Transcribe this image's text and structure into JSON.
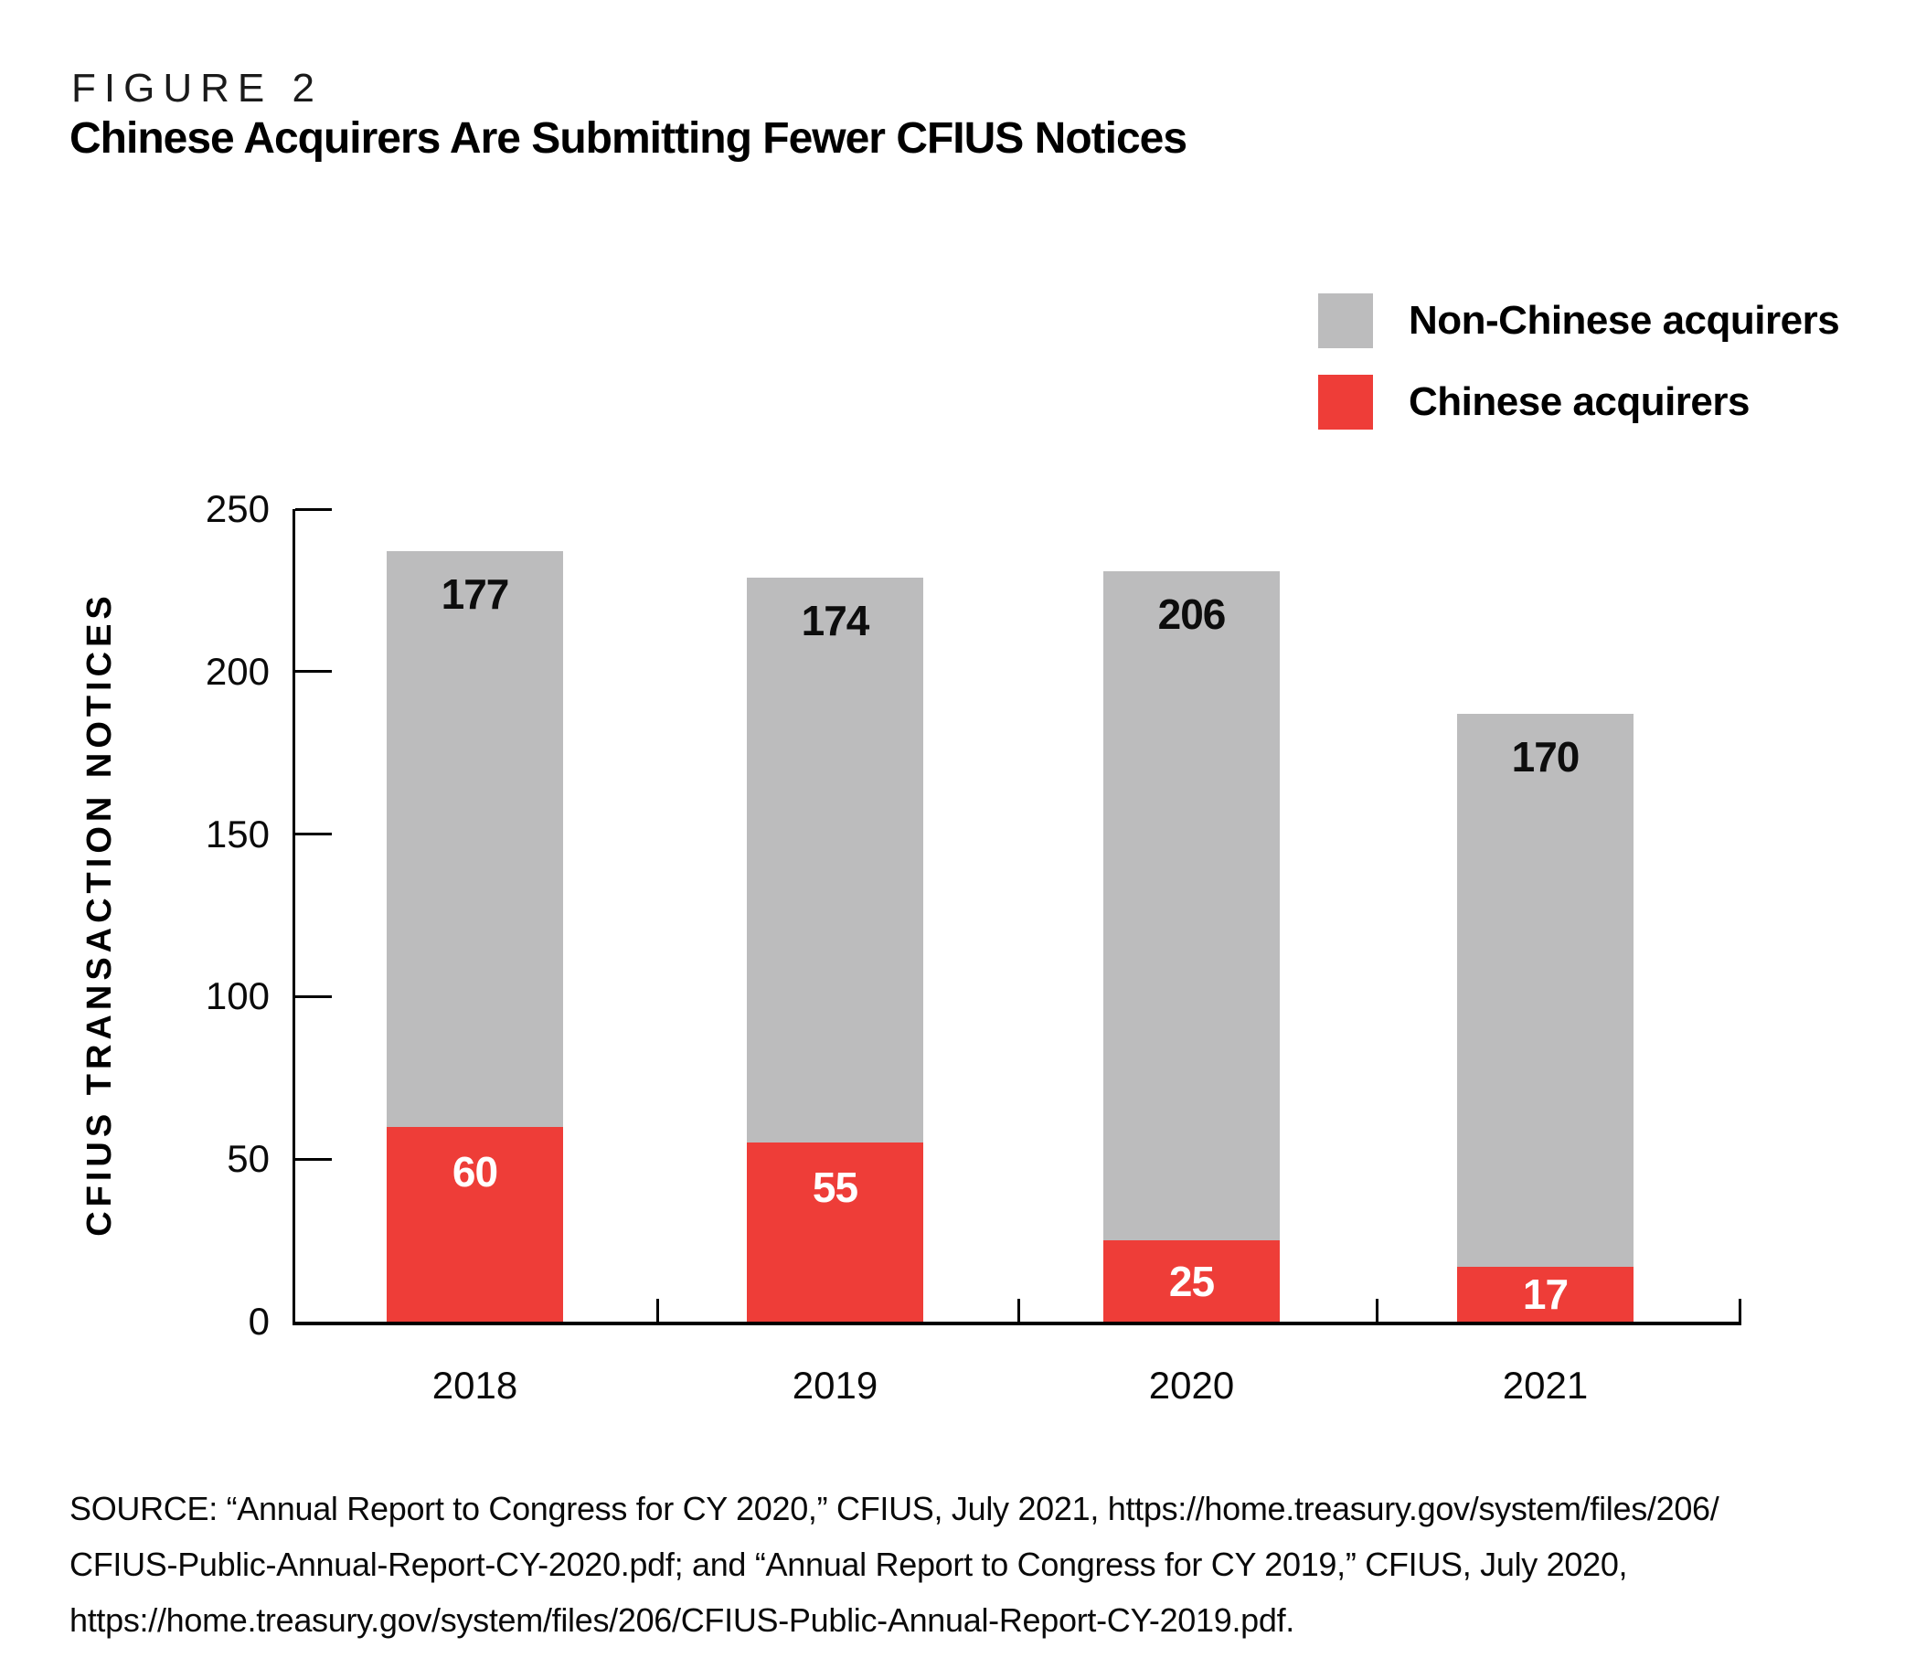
{
  "header": {
    "figure_label": "FIGURE 2",
    "title": "Chinese Acquirers Are Submitting Fewer CFIUS Notices"
  },
  "legend": {
    "items": [
      {
        "label": "Non-Chinese acquirers",
        "color": "#bcbcbd"
      },
      {
        "label": "Chinese acquirers",
        "color": "#ee3d38"
      }
    ]
  },
  "chart_data": {
    "type": "bar",
    "stacked": true,
    "categories": [
      "2018",
      "2019",
      "2020",
      "2021"
    ],
    "series": [
      {
        "name": "Chinese acquirers",
        "color": "#ee3d38",
        "values": [
          60,
          55,
          25,
          17
        ]
      },
      {
        "name": "Non-Chinese acquirers",
        "color": "#bcbcbd",
        "values": [
          177,
          174,
          206,
          170
        ]
      }
    ],
    "title": "Chinese Acquirers Are Submitting Fewer CFIUS Notices",
    "xlabel": "",
    "ylabel": "CFIUS TRANSACTION NOTICES",
    "ylim": [
      0,
      250
    ],
    "yticks": [
      0,
      50,
      100,
      150,
      200,
      250
    ],
    "grid": false,
    "legend_position": "top-right",
    "value_label_colors": {
      "chinese": "#ffffff",
      "non_chinese": "#0d0d0d"
    },
    "axis_color": "#000000"
  },
  "source": {
    "lines": [
      "SOURCE: “Annual Report to Congress for CY 2020,” CFIUS, July 2021, https://home.treasury.gov/system/files/206/",
      "CFIUS-Public-Annual-Report-CY-2020.pdf; and “Annual Report to Congress for CY 2019,” CFIUS, July 2020,",
      "https://home.treasury.gov/system/files/206/CFIUS-Public-Annual-Report-CY-2019.pdf."
    ]
  }
}
